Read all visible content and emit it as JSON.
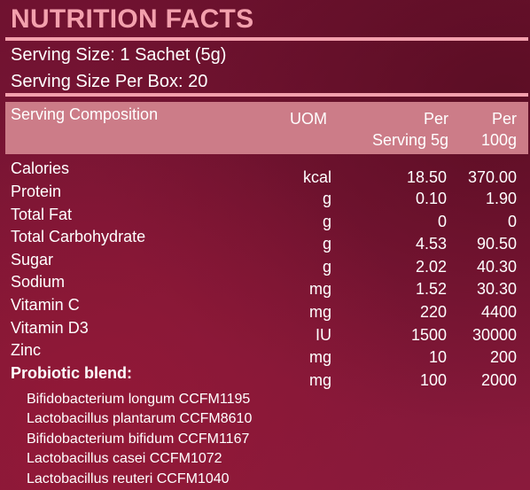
{
  "title": "NUTRITION FACTS",
  "serving": {
    "size": "Serving Size: 1 Sachet (5g)",
    "per_box": "Serving Size Per Box: 20"
  },
  "table": {
    "headers": {
      "composition": "Serving Composition",
      "uom": "UOM",
      "per_serving_line1": "Per",
      "per_serving_line2": "Serving 5g",
      "per_100g_line1": "Per",
      "per_100g_line2": "100g"
    },
    "nutrients": [
      {
        "name": "Calories",
        "uom": "kcal",
        "per_serving": "18.50",
        "per_100g": "370.00"
      },
      {
        "name": "Protein",
        "uom": "g",
        "per_serving": "0.10",
        "per_100g": "1.90"
      },
      {
        "name": "Total Fat",
        "uom": "g",
        "per_serving": "0",
        "per_100g": "0"
      },
      {
        "name": "Total Carbohydrate",
        "uom": "g",
        "per_serving": "4.53",
        "per_100g": "90.50"
      },
      {
        "name": "Sugar",
        "uom": "g",
        "per_serving": "2.02",
        "per_100g": "40.30"
      },
      {
        "name": "Sodium",
        "uom": "mg",
        "per_serving": "1.52",
        "per_100g": "30.30"
      },
      {
        "name": "Vitamin C",
        "uom": "mg",
        "per_serving": "220",
        "per_100g": "4400"
      },
      {
        "name": "Vitamin D3",
        "uom": "IU",
        "per_serving": "1500",
        "per_100g": "30000"
      },
      {
        "name": "Zinc",
        "uom": "mg",
        "per_serving": "10",
        "per_100g": "200"
      },
      {
        "name": "Probiotic blend:",
        "uom": "mg",
        "per_serving": "100",
        "per_100g": "2000"
      }
    ],
    "probiotic_strains": [
      "Bifidobacterium longum CCFM1195",
      "Lactobacillus plantarum CCFM8610",
      "Bifidobacterium bifidum CCFM1167",
      "Lactobacillus casei CCFM1072",
      "Lactobacillus reuteri CCFM1040"
    ]
  },
  "colors": {
    "accent_pink": "#f3a0ad",
    "header_band": "#cc7c88",
    "background_dark": "#6f1230",
    "background_light": "#8a1a3c"
  }
}
